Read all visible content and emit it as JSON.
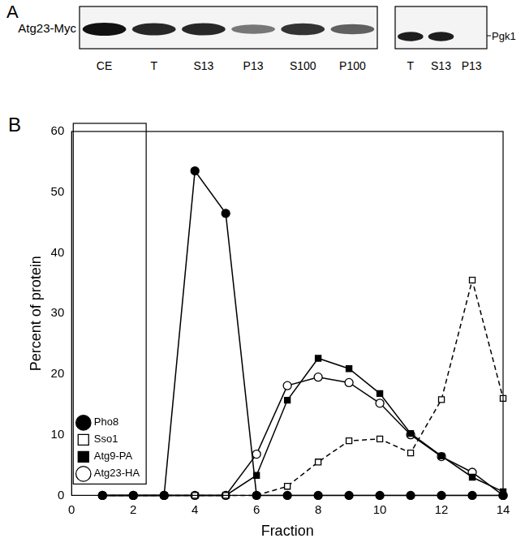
{
  "panel_a": {
    "label": "A",
    "row_label": "Atg23-Myc",
    "lanes": [
      "CE",
      "T",
      "S13",
      "P13",
      "S100",
      "P100"
    ],
    "band_intensity": [
      1.0,
      0.9,
      0.9,
      0.55,
      0.85,
      0.65
    ],
    "control_label": "Pgk1",
    "control_lanes": [
      "T",
      "S13",
      "P13"
    ],
    "control_band_intensity": [
      0.95,
      0.95,
      0
    ]
  },
  "chart_data": {
    "panel_label": "B",
    "type": "line",
    "x_label": "Fraction",
    "y_label": "Percent of protein",
    "x": [
      1,
      2,
      3,
      4,
      5,
      6,
      7,
      8,
      9,
      10,
      11,
      12,
      13,
      14
    ],
    "series": [
      {
        "name": "Pho8",
        "color": "#000000",
        "marker": "filled_circle",
        "line_style": "solid",
        "values": [
          0,
          0,
          0,
          53.5,
          46.5,
          0,
          0,
          0,
          0,
          0,
          0,
          0,
          0,
          0
        ]
      },
      {
        "name": "Sso1",
        "color": "#000000",
        "marker": "open_square",
        "line_style": "dashed",
        "values": [
          0,
          0,
          0,
          0,
          0,
          0,
          1.5,
          5.5,
          9,
          9.3,
          7,
          15.8,
          35.5,
          16
        ]
      },
      {
        "name": "Atg9-PA",
        "color": "#000000",
        "marker": "filled_square",
        "line_style": "solid",
        "values": [
          0,
          0,
          0,
          0,
          0,
          3.3,
          15.7,
          22.6,
          20.9,
          16.8,
          10.2,
          6.5,
          3,
          0.6
        ]
      },
      {
        "name": "Atg23-HA",
        "color": "#000000",
        "marker": "open_circle",
        "line_style": "solid",
        "values": [
          0,
          0,
          0,
          0,
          0,
          6.8,
          18.1,
          19.5,
          18.6,
          15.2,
          10,
          6.4,
          3.8,
          0
        ]
      }
    ],
    "xlim": [
      0,
      14
    ],
    "xticks": [
      0,
      2,
      4,
      6,
      8,
      10,
      12,
      14
    ],
    "ylim": [
      0,
      60
    ],
    "yticks": [
      0,
      10,
      20,
      30,
      40,
      50,
      60
    ],
    "grid": false,
    "legend": "upper right"
  }
}
